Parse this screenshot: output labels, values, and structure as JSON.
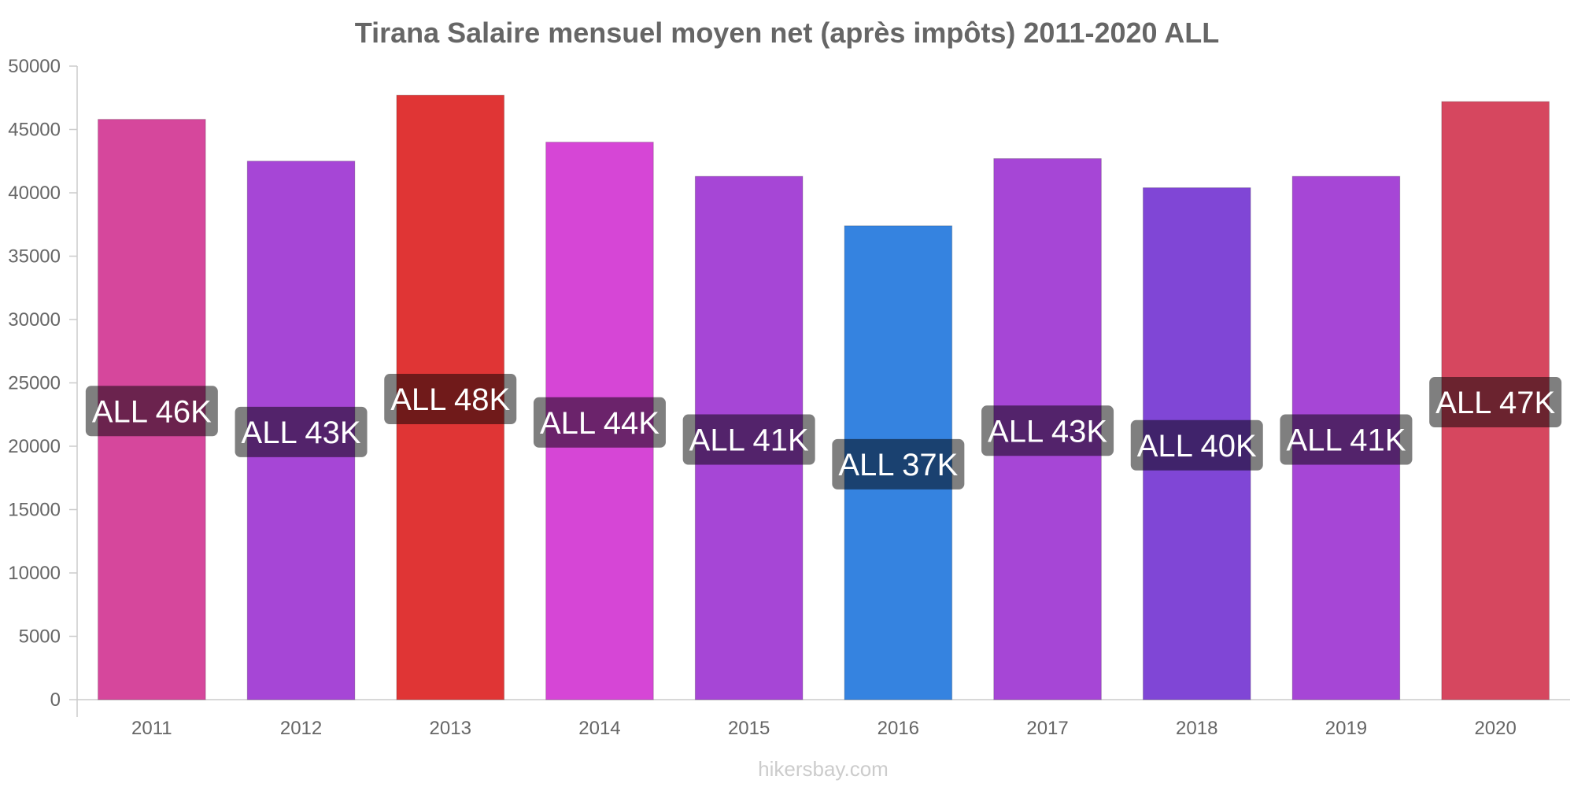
{
  "chart_data": {
    "type": "bar",
    "title": "Tirana Salaire mensuel moyen net (après impôts) 2011-2020 ALL",
    "categories": [
      "2011",
      "2012",
      "2013",
      "2014",
      "2015",
      "2016",
      "2017",
      "2018",
      "2019",
      "2020"
    ],
    "values": [
      45800,
      42500,
      47700,
      44000,
      41300,
      37400,
      42700,
      40400,
      41300,
      47200
    ],
    "data_labels": [
      "ALL 46K",
      "ALL 43K",
      "ALL 48K",
      "ALL 44K",
      "ALL 41K",
      "ALL 37K",
      "ALL 43K",
      "ALL 40K",
      "ALL 41K",
      "ALL 47K"
    ],
    "bar_colors": [
      "#d6479c",
      "#a646d6",
      "#e03535",
      "#d646d6",
      "#a646d6",
      "#3583e0",
      "#a646d6",
      "#8046d6",
      "#a646d6",
      "#d6475f"
    ],
    "yticks": [
      "0",
      "5000",
      "10000",
      "15000",
      "20000",
      "25000",
      "30000",
      "35000",
      "40000",
      "45000",
      "50000"
    ],
    "ylim": [
      0,
      50000
    ],
    "xlabel": "",
    "ylabel": "",
    "grid": false
  },
  "source": "hikersbay.com"
}
